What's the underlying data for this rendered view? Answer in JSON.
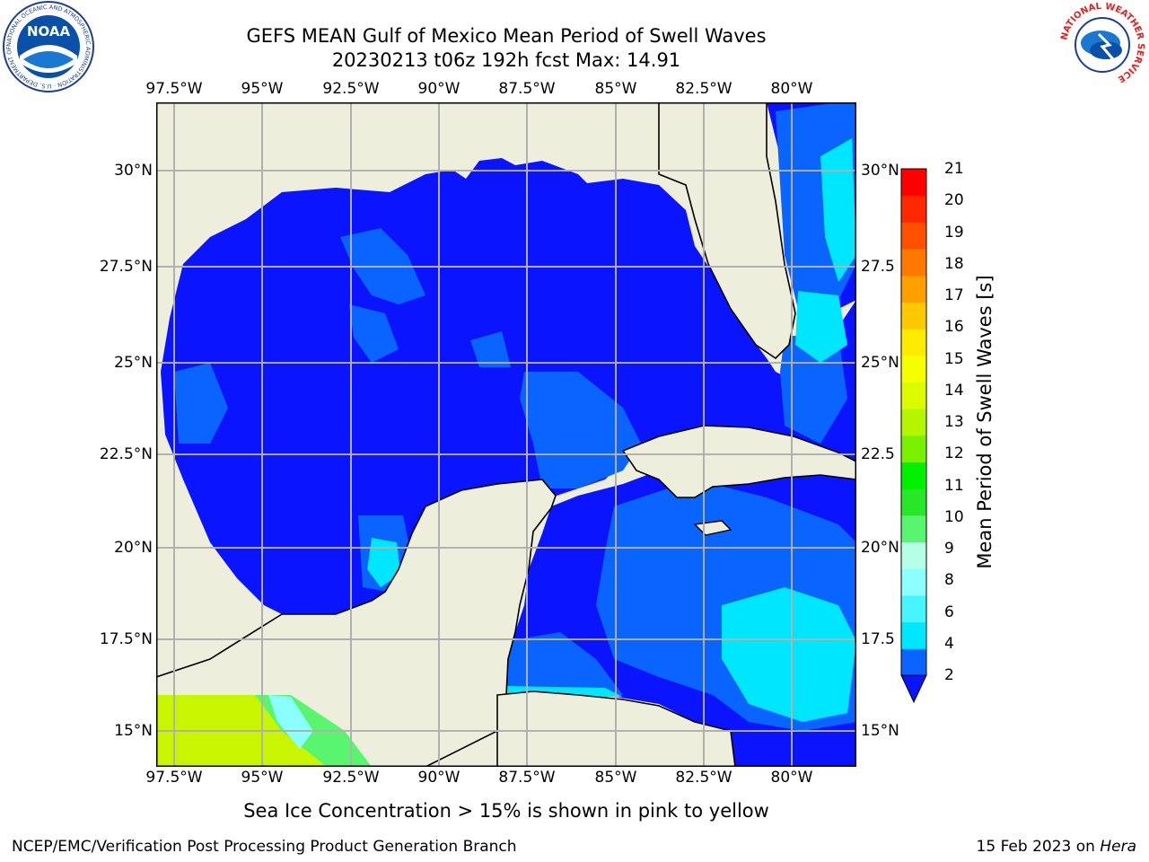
{
  "title_line1": "GEFS MEAN Gulf of Mexico Mean Period of Swell Waves",
  "title_line2": "20230213 t06z 192h fcst   Max: 14.91",
  "lon_ticks": [
    "97.5°W",
    "95°W",
    "92.5°W",
    "90°W",
    "87.5°W",
    "85°W",
    "82.5°W",
    "80°W"
  ],
  "lat_ticks_left": [
    "30°N",
    "27.5°N",
    "25°N",
    "22.5°N",
    "20°N",
    "17.5°N",
    "15°N"
  ],
  "lat_ticks_right": [
    "30°N",
    "27.5",
    "25°N",
    "22.5",
    "20°N",
    "17.5",
    "15°N"
  ],
  "colorbar": {
    "label": "Mean Period of Swell Waves [s]",
    "ticks": [
      "2",
      "4",
      "6",
      "8",
      "9",
      "10",
      "11",
      "12",
      "13",
      "14",
      "15",
      "16",
      "17",
      "18",
      "19",
      "20",
      "21"
    ],
    "colors": [
      "#0a64ff",
      "#00e6ff",
      "#46f5ff",
      "#8cffff",
      "#b4ffe6",
      "#5af56e",
      "#28e628",
      "#00f000",
      "#78f000",
      "#b4f500",
      "#dcfa00",
      "#f5ff00",
      "#ffeb00",
      "#ffc800",
      "#ffa000",
      "#ff7800",
      "#ff5000",
      "#ff2800",
      "#ff0000"
    ],
    "extend_color": "#0a14ff"
  },
  "note": "Sea Ice Concentration > 15% is shown in pink to yellow",
  "credit": "NCEP/EMC/Verification Post Processing Product Generation Branch",
  "date_prefix": "15 Feb 2023 on",
  "date_machine": "Hera",
  "map_colors": {
    "land": "#eeeedc",
    "deep": "#0a14ff",
    "mid": "#0a64ff",
    "light": "#00e6ff",
    "ice_green": "#5af56e",
    "ice_yellow": "#c8f500"
  },
  "logos": {
    "left_text": "NOAA",
    "left_ring": "NATIONAL OCEANIC AND ATMOSPHERIC ADMINISTRATION · U.S. DEPARTMENT OF COMMERCE",
    "right_ring": "NATIONAL WEATHER SERVICE"
  }
}
